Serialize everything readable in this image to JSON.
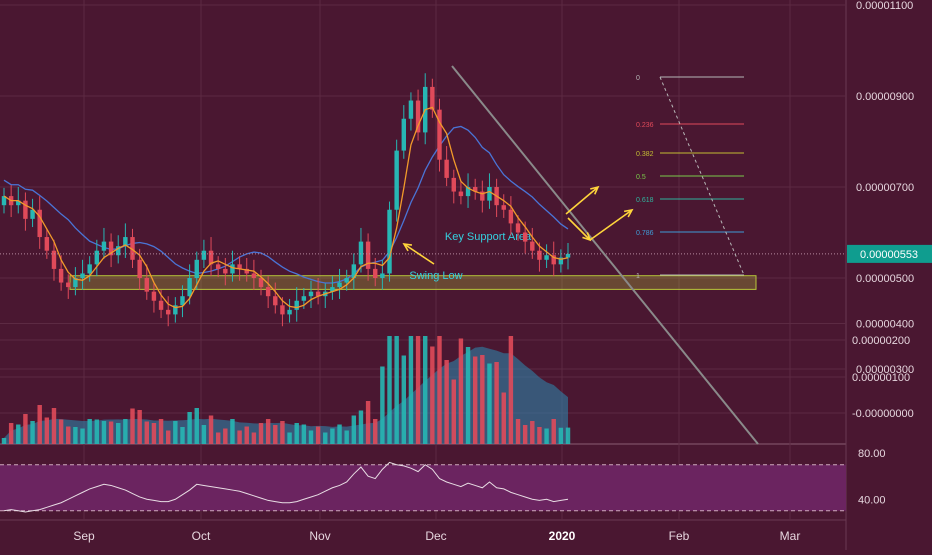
{
  "colors": {
    "background": "#4a1731",
    "grid": "#5c2a43",
    "up": "#27b7b4",
    "down": "#e04a5a",
    "ma_fast": "#f29a2a",
    "ma_slow": "#4a74d6",
    "volume_ma": "#2e82a8",
    "rsi_band": "#6b2460",
    "rsi_line": "#e8dde4",
    "support": "#b9c93a",
    "arrow": "#ffd53b",
    "trendline": "#8a8a8a",
    "price_tag": "#0f9d8f",
    "annotation": "#35d0e0",
    "fib_0": "#b7b7b7",
    "fib_0236": "#e04a5a",
    "fib_0382": "#c3bd33",
    "fib_05": "#7acb4a",
    "fib_0618": "#2fb39d",
    "fib_0786": "#3f9bd6",
    "fib_1": "#b7b7b7"
  },
  "chart_data": {
    "type": "candlestick",
    "price_axis": {
      "ticks": [
        "0.00001100",
        "0.00000900",
        "0.00000700",
        "0.00000500",
        "0.00000400",
        "0.00000300"
      ],
      "current_price": "0.00000553",
      "ylim": [
        2.4e-06,
        1.13e-05
      ]
    },
    "volume_axis": {
      "ticks": [
        "0.00000200",
        "0.00000100",
        "-0.00000000"
      ]
    },
    "rsi_axis": {
      "ticks": [
        "80.00",
        "40.00"
      ],
      "levels": [
        70,
        30
      ],
      "ylim": [
        22,
        88
      ]
    },
    "x_axis": {
      "ticks": [
        "Sep",
        "Oct",
        "Nov",
        "Dec",
        "2020",
        "Feb",
        "Mar"
      ]
    },
    "candles_close_approx": [
      6.8,
      6.6,
      6.7,
      6.3,
      6.5,
      5.9,
      5.6,
      5.2,
      4.9,
      4.8,
      5.0,
      5.1,
      5.3,
      5.6,
      5.8,
      5.5,
      5.7,
      5.9,
      5.4,
      5.0,
      4.7,
      4.5,
      4.3,
      4.2,
      4.4,
      4.6,
      5.0,
      5.4,
      5.6,
      5.3,
      5.2,
      5.1,
      5.3,
      5.2,
      5.1,
      5.0,
      4.8,
      4.6,
      4.4,
      4.2,
      4.3,
      4.5,
      4.6,
      4.7,
      4.6,
      4.7,
      4.8,
      4.9,
      5.0,
      5.3,
      5.8,
      5.2,
      5.0,
      5.1,
      6.5,
      7.8,
      8.5,
      8.9,
      8.2,
      9.2,
      8.7,
      7.6,
      7.2,
      6.9,
      6.8,
      7.0,
      6.9,
      6.7,
      7.0,
      6.6,
      6.5,
      6.2,
      6.0,
      5.8,
      5.6,
      5.4,
      5.5,
      5.3,
      5.45,
      5.53
    ],
    "annotations": {
      "support_label": "Key Support Area",
      "swing_low_label": "Swing Low"
    },
    "fibonacci_levels": [
      "0",
      "0.236",
      "0.382",
      "0.5",
      "0.618",
      "0.786",
      "1"
    ],
    "rsi_values": [
      30,
      31,
      30,
      29,
      30,
      31,
      33,
      35,
      37,
      40,
      43,
      46,
      49,
      51,
      53,
      52,
      50,
      48,
      45,
      42,
      40,
      39,
      38,
      38,
      40,
      44,
      48,
      53,
      52,
      51,
      50,
      49,
      48,
      47,
      45,
      43,
      41,
      39,
      38,
      37,
      37,
      38,
      40,
      42,
      44,
      47,
      50,
      52,
      55,
      62,
      68,
      60,
      58,
      66,
      72,
      70,
      69,
      67,
      64,
      70,
      66,
      58,
      55,
      53,
      51,
      54,
      52,
      50,
      55,
      50,
      49,
      46,
      44,
      42,
      40,
      39,
      40,
      38,
      39,
      40
    ]
  }
}
